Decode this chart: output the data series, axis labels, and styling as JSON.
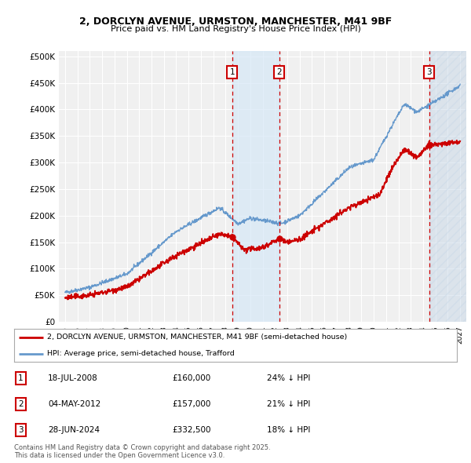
{
  "title_line1": "2, DORCLYN AVENUE, URMSTON, MANCHESTER, M41 9BF",
  "title_line2": "Price paid vs. HM Land Registry's House Price Index (HPI)",
  "ylabel_ticks": [
    "£0",
    "£50K",
    "£100K",
    "£150K",
    "£200K",
    "£250K",
    "£300K",
    "£350K",
    "£400K",
    "£450K",
    "£500K"
  ],
  "ytick_values": [
    0,
    50000,
    100000,
    150000,
    200000,
    250000,
    300000,
    350000,
    400000,
    450000,
    500000
  ],
  "ylim": [
    0,
    510000
  ],
  "xlim_start": 1994.5,
  "xlim_end": 2027.5,
  "sale_dates": [
    2008.54,
    2012.34,
    2024.49
  ],
  "sale_prices": [
    160000,
    157000,
    332500
  ],
  "sale_labels": [
    "1",
    "2",
    "3"
  ],
  "sale_date_strs": [
    "18-JUL-2008",
    "04-MAY-2012",
    "28-JUN-2024"
  ],
  "sale_price_strs": [
    "£160,000",
    "£157,000",
    "£332,500"
  ],
  "sale_hpi_strs": [
    "24% ↓ HPI",
    "21% ↓ HPI",
    "18% ↓ HPI"
  ],
  "legend_line1": "2, DORCLYN AVENUE, URMSTON, MANCHESTER, M41 9BF (semi-detached house)",
  "legend_line2": "HPI: Average price, semi-detached house, Trafford",
  "footer": "Contains HM Land Registry data © Crown copyright and database right 2025.\nThis data is licensed under the Open Government Licence v3.0.",
  "line_color_red": "#cc0000",
  "line_color_blue": "#6699cc",
  "shade_color_blue": "#d6e8f7",
  "shade_color_hatch": "#c8d8e8",
  "vline_color": "#cc0000",
  "bg_color": "#f0f0f0"
}
